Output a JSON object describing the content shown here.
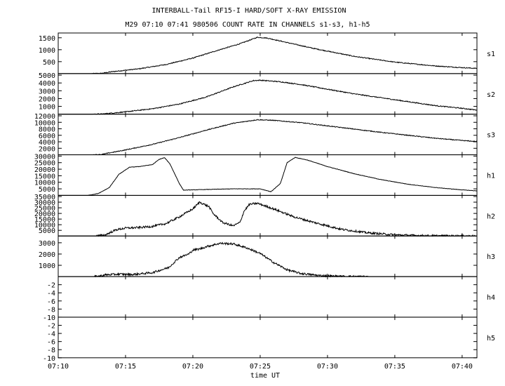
{
  "title_line1": "INTERBALL-Tail RF15-I HARD/SOFT X-RAY EMISSION",
  "title_line2": "M29  07:10 07:41 980506  COUNT RATE IN CHANNELS s1-s3, h1-h5",
  "colors": {
    "background": "#ffffff",
    "ink": "#000000"
  },
  "chart_data": {
    "type": "line",
    "xlabel": "time UT",
    "x_range_minutes": [
      0,
      31.1
    ],
    "x_ticks": [
      {
        "minute": 0,
        "label": "07:10"
      },
      {
        "minute": 5,
        "label": "07:15"
      },
      {
        "minute": 10,
        "label": "07:20"
      },
      {
        "minute": 15,
        "label": "07:25"
      },
      {
        "minute": 20,
        "label": "07:30"
      },
      {
        "minute": 25,
        "label": "07:35"
      },
      {
        "minute": 30,
        "label": "07:40"
      }
    ],
    "panels": [
      {
        "channel": "s1",
        "ylim": [
          0,
          1700
        ],
        "yticks": [
          500,
          1000,
          1500
        ],
        "ytick_labels": [
          "500",
          "1000",
          "1500"
        ],
        "points": [
          [
            0,
            0
          ],
          [
            2.5,
            0
          ],
          [
            3.2,
            10
          ],
          [
            4,
            80
          ],
          [
            6,
            200
          ],
          [
            8,
            380
          ],
          [
            10,
            650
          ],
          [
            12,
            1000
          ],
          [
            13.5,
            1250
          ],
          [
            14.8,
            1520
          ],
          [
            15.5,
            1490
          ],
          [
            17,
            1300
          ],
          [
            19,
            1050
          ],
          [
            22,
            720
          ],
          [
            25,
            480
          ],
          [
            28,
            320
          ],
          [
            30,
            250
          ],
          [
            31,
            220
          ]
        ],
        "noise": 18
      },
      {
        "channel": "s2",
        "ylim": [
          0,
          5200
        ],
        "yticks": [
          1000,
          2000,
          3000,
          4000,
          5000
        ],
        "ytick_labels": [
          "1000",
          "2000",
          "3000",
          "4000",
          "5000"
        ],
        "points": [
          [
            0,
            0
          ],
          [
            2.5,
            0
          ],
          [
            3.2,
            20
          ],
          [
            5,
            300
          ],
          [
            7,
            700
          ],
          [
            9,
            1300
          ],
          [
            11,
            2200
          ],
          [
            13,
            3500
          ],
          [
            14.5,
            4300
          ],
          [
            15,
            4350
          ],
          [
            16.5,
            4150
          ],
          [
            18,
            3800
          ],
          [
            20,
            3200
          ],
          [
            22,
            2600
          ],
          [
            24,
            2100
          ],
          [
            26,
            1600
          ],
          [
            28,
            1100
          ],
          [
            30,
            750
          ],
          [
            31,
            550
          ]
        ],
        "noise": 60
      },
      {
        "channel": "s3",
        "ylim": [
          0,
          12500
        ],
        "yticks": [
          2000,
          4000,
          6000,
          8000,
          10000,
          12000
        ],
        "ytick_labels": [
          "2000",
          "4000",
          "6000",
          "8000",
          "10000",
          "12000"
        ],
        "points": [
          [
            0,
            0
          ],
          [
            2.5,
            0
          ],
          [
            3.2,
            100
          ],
          [
            5,
            1500
          ],
          [
            7,
            3200
          ],
          [
            9,
            5300
          ],
          [
            11,
            7600
          ],
          [
            13,
            9700
          ],
          [
            14.8,
            10800
          ],
          [
            16,
            10600
          ],
          [
            18,
            9900
          ],
          [
            20,
            8900
          ],
          [
            22,
            7900
          ],
          [
            24,
            6900
          ],
          [
            26,
            6000
          ],
          [
            28,
            5100
          ],
          [
            30,
            4400
          ],
          [
            31,
            4100
          ]
        ],
        "noise": 120
      },
      {
        "channel": "h1",
        "ylim": [
          0,
          31000
        ],
        "yticks": [
          5000,
          10000,
          15000,
          20000,
          25000,
          30000
        ],
        "ytick_labels": [
          "5000",
          "10000",
          "15000",
          "20000",
          "25000",
          "30000"
        ],
        "points": [
          [
            0,
            0
          ],
          [
            2.2,
            0
          ],
          [
            3,
            1500
          ],
          [
            3.8,
            6000
          ],
          [
            4.5,
            16000
          ],
          [
            5.3,
            21500
          ],
          [
            6,
            22000
          ],
          [
            7,
            23500
          ],
          [
            7.5,
            27500
          ],
          [
            7.9,
            28800
          ],
          [
            8.3,
            24000
          ],
          [
            9,
            9000
          ],
          [
            9.3,
            4000
          ],
          [
            11,
            4500
          ],
          [
            13,
            5000
          ],
          [
            15,
            5000
          ],
          [
            15.8,
            2800
          ],
          [
            16.5,
            9000
          ],
          [
            17,
            25000
          ],
          [
            17.6,
            29000
          ],
          [
            18.5,
            27000
          ],
          [
            20,
            22000
          ],
          [
            22,
            16500
          ],
          [
            24,
            12000
          ],
          [
            26,
            8500
          ],
          [
            28,
            6000
          ],
          [
            30,
            4200
          ],
          [
            31,
            3500
          ]
        ],
        "noise": 150
      },
      {
        "channel": "h2",
        "ylim": [
          0,
          36000
        ],
        "yticks": [
          5000,
          10000,
          15000,
          20000,
          25000,
          30000,
          35000
        ],
        "ytick_labels": [
          "5000",
          "10000",
          "15000",
          "20000",
          "25000",
          "30000",
          "35000"
        ],
        "points": [
          [
            0,
            0
          ],
          [
            2.8,
            0
          ],
          [
            3.5,
            1000
          ],
          [
            4.3,
            5500
          ],
          [
            5,
            7000
          ],
          [
            6,
            7500
          ],
          [
            7,
            8500
          ],
          [
            8,
            11000
          ],
          [
            9,
            17000
          ],
          [
            10,
            24000
          ],
          [
            10.5,
            30000
          ],
          [
            11.2,
            26000
          ],
          [
            11.5,
            20000
          ],
          [
            12.2,
            12000
          ],
          [
            13,
            9000
          ],
          [
            13.5,
            12000
          ],
          [
            13.8,
            22000
          ],
          [
            14.2,
            28000
          ],
          [
            14.8,
            29000
          ],
          [
            16,
            24000
          ],
          [
            17.5,
            17000
          ],
          [
            19,
            12000
          ],
          [
            21,
            6000
          ],
          [
            23,
            2800
          ],
          [
            25,
            1000
          ],
          [
            27,
            300
          ],
          [
            29,
            100
          ],
          [
            31,
            0
          ]
        ],
        "noise": 900
      },
      {
        "channel": "h3",
        "ylim": [
          0,
          3600
        ],
        "yticks": [
          1000,
          2000,
          3000
        ],
        "ytick_labels": [
          "1000",
          "2000",
          "3000"
        ],
        "points": [
          [
            0,
            0
          ],
          [
            2.7,
            0
          ],
          [
            3,
            40
          ],
          [
            3.5,
            150
          ],
          [
            4.5,
            220
          ],
          [
            5.5,
            180
          ],
          [
            7,
            350
          ],
          [
            8.2,
            800
          ],
          [
            9,
            1700
          ],
          [
            9.7,
            2000
          ],
          [
            10,
            2350
          ],
          [
            10.5,
            2450
          ],
          [
            11,
            2650
          ],
          [
            12,
            2950
          ],
          [
            13,
            2900
          ],
          [
            14,
            2550
          ],
          [
            15,
            2050
          ],
          [
            16,
            1250
          ],
          [
            17,
            600
          ],
          [
            18,
            280
          ],
          [
            19.5,
            80
          ],
          [
            21,
            20
          ],
          [
            23,
            0
          ],
          [
            31,
            0
          ]
        ],
        "noise": 90
      },
      {
        "channel": "h4",
        "ylim": [
          -10,
          0
        ],
        "yticks": [
          -10,
          -8,
          -6,
          -4,
          -2
        ],
        "ytick_labels": [
          "-10",
          "-8",
          "-6",
          "-4",
          "-2"
        ],
        "points": [],
        "noise": 0
      },
      {
        "channel": "h5",
        "ylim": [
          -10,
          0
        ],
        "yticks": [
          -10,
          -8,
          -6,
          -4,
          -2
        ],
        "ytick_labels": [
          "-10",
          "-8",
          "-6",
          "-4",
          "-2"
        ],
        "points": [],
        "noise": 0
      }
    ]
  }
}
